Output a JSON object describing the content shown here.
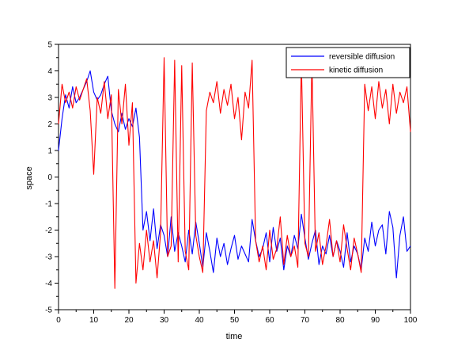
{
  "chart_data": {
    "type": "line",
    "xlabel": "time",
    "ylabel": "space",
    "xlim": [
      0,
      100
    ],
    "ylim": [
      -5,
      5
    ],
    "xticks": [
      "0",
      "10",
      "20",
      "30",
      "40",
      "50",
      "60",
      "70",
      "80",
      "90",
      "100"
    ],
    "yticks": [
      "-5",
      "-4",
      "-3",
      "-2",
      "-1",
      "0",
      "1",
      "2",
      "3",
      "4",
      "5"
    ],
    "grid": false,
    "legend_position": "top-right",
    "series": [
      {
        "name": "reversible diffusion",
        "color": "#0000ff",
        "x": [
          0,
          1,
          2,
          3,
          4,
          5,
          6,
          7,
          8,
          9,
          10,
          11,
          12,
          13,
          14,
          15,
          16,
          17,
          18,
          19,
          20,
          21,
          22,
          23,
          24,
          25,
          26,
          27,
          28,
          29,
          30,
          31,
          32,
          33,
          34,
          35,
          36,
          37,
          38,
          39,
          40,
          41,
          42,
          43,
          44,
          45,
          46,
          47,
          48,
          49,
          50,
          51,
          52,
          53,
          54,
          55,
          56,
          57,
          58,
          59,
          60,
          61,
          62,
          63,
          64,
          65,
          66,
          67,
          68,
          69,
          70,
          71,
          72,
          73,
          74,
          75,
          76,
          77,
          78,
          79,
          80,
          81,
          82,
          83,
          84,
          85,
          86,
          87,
          88,
          89,
          90,
          91,
          92,
          93,
          94,
          95,
          96,
          97,
          98,
          99,
          100
        ],
        "y": [
          1.0,
          2.2,
          3.1,
          2.6,
          3.4,
          2.8,
          3.0,
          3.3,
          3.6,
          4.0,
          3.2,
          2.9,
          3.1,
          3.5,
          3.8,
          2.5,
          2.0,
          1.7,
          2.4,
          1.8,
          2.2,
          1.9,
          2.6,
          1.5,
          -2.0,
          -1.3,
          -2.4,
          -1.2,
          -2.7,
          -1.8,
          -2.2,
          -3.0,
          -1.5,
          -2.8,
          -2.1,
          -2.6,
          -3.2,
          -2.0,
          -2.9,
          -1.7,
          -2.5,
          -3.4,
          -2.1,
          -2.8,
          -3.6,
          -2.3,
          -3.0,
          -2.5,
          -3.3,
          -2.7,
          -2.2,
          -3.1,
          -2.6,
          -2.9,
          -3.2,
          -1.6,
          -2.4,
          -3.0,
          -2.7,
          -2.1,
          -3.2,
          -1.9,
          -2.8,
          -2.3,
          -3.5,
          -2.6,
          -3.0,
          -2.2,
          -2.7,
          -1.4,
          -2.3,
          -3.1,
          -2.5,
          -2.0,
          -3.3,
          -2.6,
          -2.9,
          -2.2,
          -3.0,
          -2.4,
          -2.8,
          -3.4,
          -2.1,
          -3.2,
          -2.6,
          -2.9,
          -3.5,
          -2.3,
          -2.8,
          -1.7,
          -2.6,
          -2.0,
          -1.8,
          -2.9,
          -1.3,
          -1.9,
          -3.8,
          -2.2,
          -1.5,
          -2.8,
          -2.6
        ]
      },
      {
        "name": "kinetic diffusion",
        "color": "#ff0000",
        "x": [
          0,
          1,
          2,
          3,
          4,
          5,
          6,
          7,
          8,
          9,
          10,
          11,
          12,
          13,
          14,
          15,
          16,
          17,
          18,
          19,
          20,
          21,
          22,
          23,
          24,
          25,
          26,
          27,
          28,
          29,
          30,
          31,
          32,
          33,
          34,
          35,
          36,
          37,
          38,
          39,
          40,
          41,
          42,
          43,
          44,
          45,
          46,
          47,
          48,
          49,
          50,
          51,
          52,
          53,
          54,
          55,
          56,
          57,
          58,
          59,
          60,
          61,
          62,
          63,
          64,
          65,
          66,
          67,
          68,
          69,
          70,
          71,
          72,
          73,
          74,
          75,
          76,
          77,
          78,
          79,
          80,
          81,
          82,
          83,
          84,
          85,
          86,
          87,
          88,
          89,
          90,
          91,
          92,
          93,
          94,
          95,
          96,
          97,
          98,
          99,
          100
        ],
        "y": [
          2.0,
          3.5,
          2.8,
          3.2,
          2.6,
          3.4,
          2.9,
          3.3,
          3.7,
          2.5,
          0.1,
          3.0,
          2.4,
          3.6,
          2.2,
          3.1,
          -4.2,
          3.3,
          2.0,
          3.5,
          1.2,
          2.8,
          -4.0,
          -2.5,
          -3.5,
          -2.0,
          -3.2,
          -2.4,
          -3.8,
          -2.1,
          4.5,
          -3.0,
          -2.6,
          4.4,
          -3.2,
          4.2,
          -2.8,
          -3.5,
          4.3,
          -2.2,
          -3.0,
          -3.6,
          2.5,
          3.2,
          2.8,
          3.6,
          2.4,
          3.3,
          2.7,
          3.5,
          2.2,
          3.0,
          1.4,
          3.2,
          2.6,
          4.4,
          -2.4,
          -3.2,
          -2.6,
          -3.5,
          -2.0,
          -3.1,
          -2.7,
          -1.5,
          -3.3,
          -2.2,
          -3.0,
          -2.6,
          -3.4,
          4.4,
          -2.5,
          -3.0,
          4.4,
          -2.8,
          -2.1,
          -3.3,
          -2.6,
          -1.6,
          -3.0,
          -2.4,
          -3.2,
          -1.8,
          -2.7,
          -3.5,
          -2.3,
          -2.9,
          -3.6,
          3.5,
          2.5,
          3.4,
          2.2,
          3.6,
          2.6,
          3.3,
          2.0,
          3.5,
          2.4,
          3.2,
          2.8,
          3.4,
          1.7
        ]
      }
    ]
  }
}
